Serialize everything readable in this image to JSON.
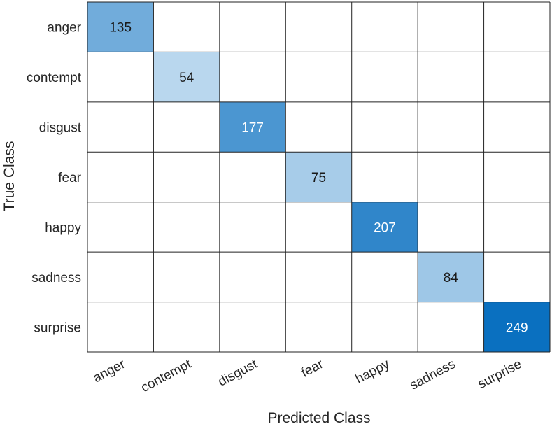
{
  "chart_data": {
    "type": "heatmap",
    "title": "",
    "xlabel": "Predicted Class",
    "ylabel": "True Class",
    "classes": [
      "anger",
      "contempt",
      "disgust",
      "fear",
      "happy",
      "sadness",
      "surprise"
    ],
    "matrix": [
      [
        135,
        null,
        null,
        null,
        null,
        null,
        null
      ],
      [
        null,
        54,
        null,
        null,
        null,
        null,
        null
      ],
      [
        null,
        null,
        177,
        null,
        null,
        null,
        null
      ],
      [
        null,
        null,
        null,
        75,
        null,
        null,
        null
      ],
      [
        null,
        null,
        null,
        null,
        207,
        null,
        null
      ],
      [
        null,
        null,
        null,
        null,
        null,
        84,
        null
      ],
      [
        null,
        null,
        null,
        null,
        null,
        null,
        249
      ]
    ],
    "color_scale": {
      "low": "#eaf3fb",
      "high": "#0a70c0",
      "min_value": 0,
      "max_value": 249,
      "dark_text": "#1a1a1a",
      "light_text": "#ffffff"
    },
    "grid": true,
    "grid_color": "#222222"
  }
}
